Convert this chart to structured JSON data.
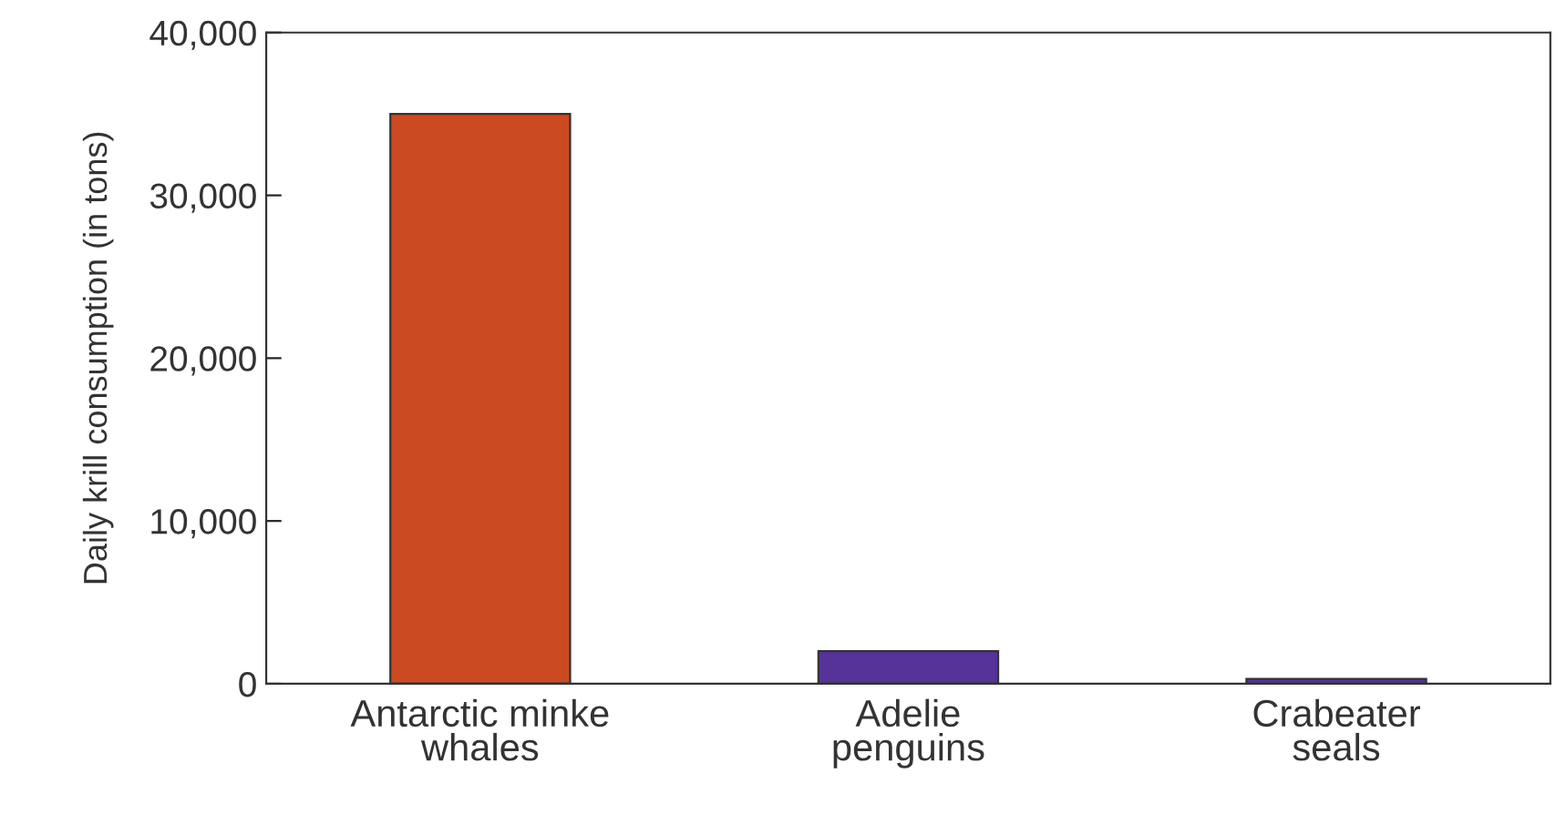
{
  "chart_data": {
    "type": "bar",
    "ylabel": "Daily krill consumption (in tons)",
    "categories": [
      "Antarctic minke\nwhales",
      "Adelie\npenguins",
      "Crabeater\nseals"
    ],
    "values": [
      35000,
      2000,
      300
    ],
    "colors": [
      "#cc4a22",
      "#553399",
      "#553399"
    ],
    "ylim": [
      0,
      40000
    ],
    "yticks": [
      {
        "value": 0,
        "label": "0"
      },
      {
        "value": 10000,
        "label": "10,000"
      },
      {
        "value": 20000,
        "label": "20,000"
      },
      {
        "value": 30000,
        "label": "30,000"
      },
      {
        "value": 40000,
        "label": "40,000"
      }
    ],
    "grid": false,
    "legend": false
  }
}
